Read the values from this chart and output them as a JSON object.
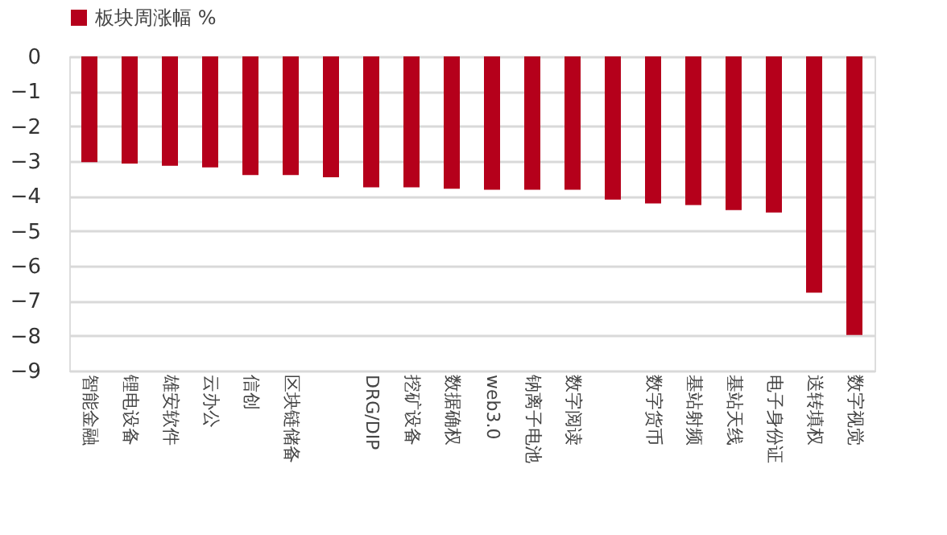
{
  "chart_data": {
    "type": "bar",
    "categories": [
      "智能金融",
      "锂电设备",
      "雄安软件",
      "云办公",
      "信创",
      "区块链储备",
      null,
      "DRG/DIP",
      "挖矿设备",
      "数据确权",
      "web3.0",
      "钠离子电池",
      "数字阅读",
      null,
      "数字货币",
      "基站射频",
      "基站天线",
      "电子身份证",
      "送转填权",
      "数字视觉"
    ],
    "series": [
      {
        "name": "板块周涨幅 %",
        "color": "#b5001b",
        "values": [
          -3.03,
          -3.07,
          -3.13,
          -3.18,
          -3.4,
          -3.4,
          -3.46,
          -3.75,
          -3.75,
          -3.79,
          -3.82,
          -3.82,
          -3.82,
          -4.1,
          -4.21,
          -4.26,
          -4.4,
          -4.47,
          -6.77,
          -7.98
        ]
      }
    ],
    "ylim": [
      -9,
      0
    ],
    "yticks": [
      0,
      -1,
      -2,
      -3,
      -4,
      -5,
      -6,
      -7,
      -8,
      -9
    ],
    "grid": "y",
    "legend": "top"
  }
}
